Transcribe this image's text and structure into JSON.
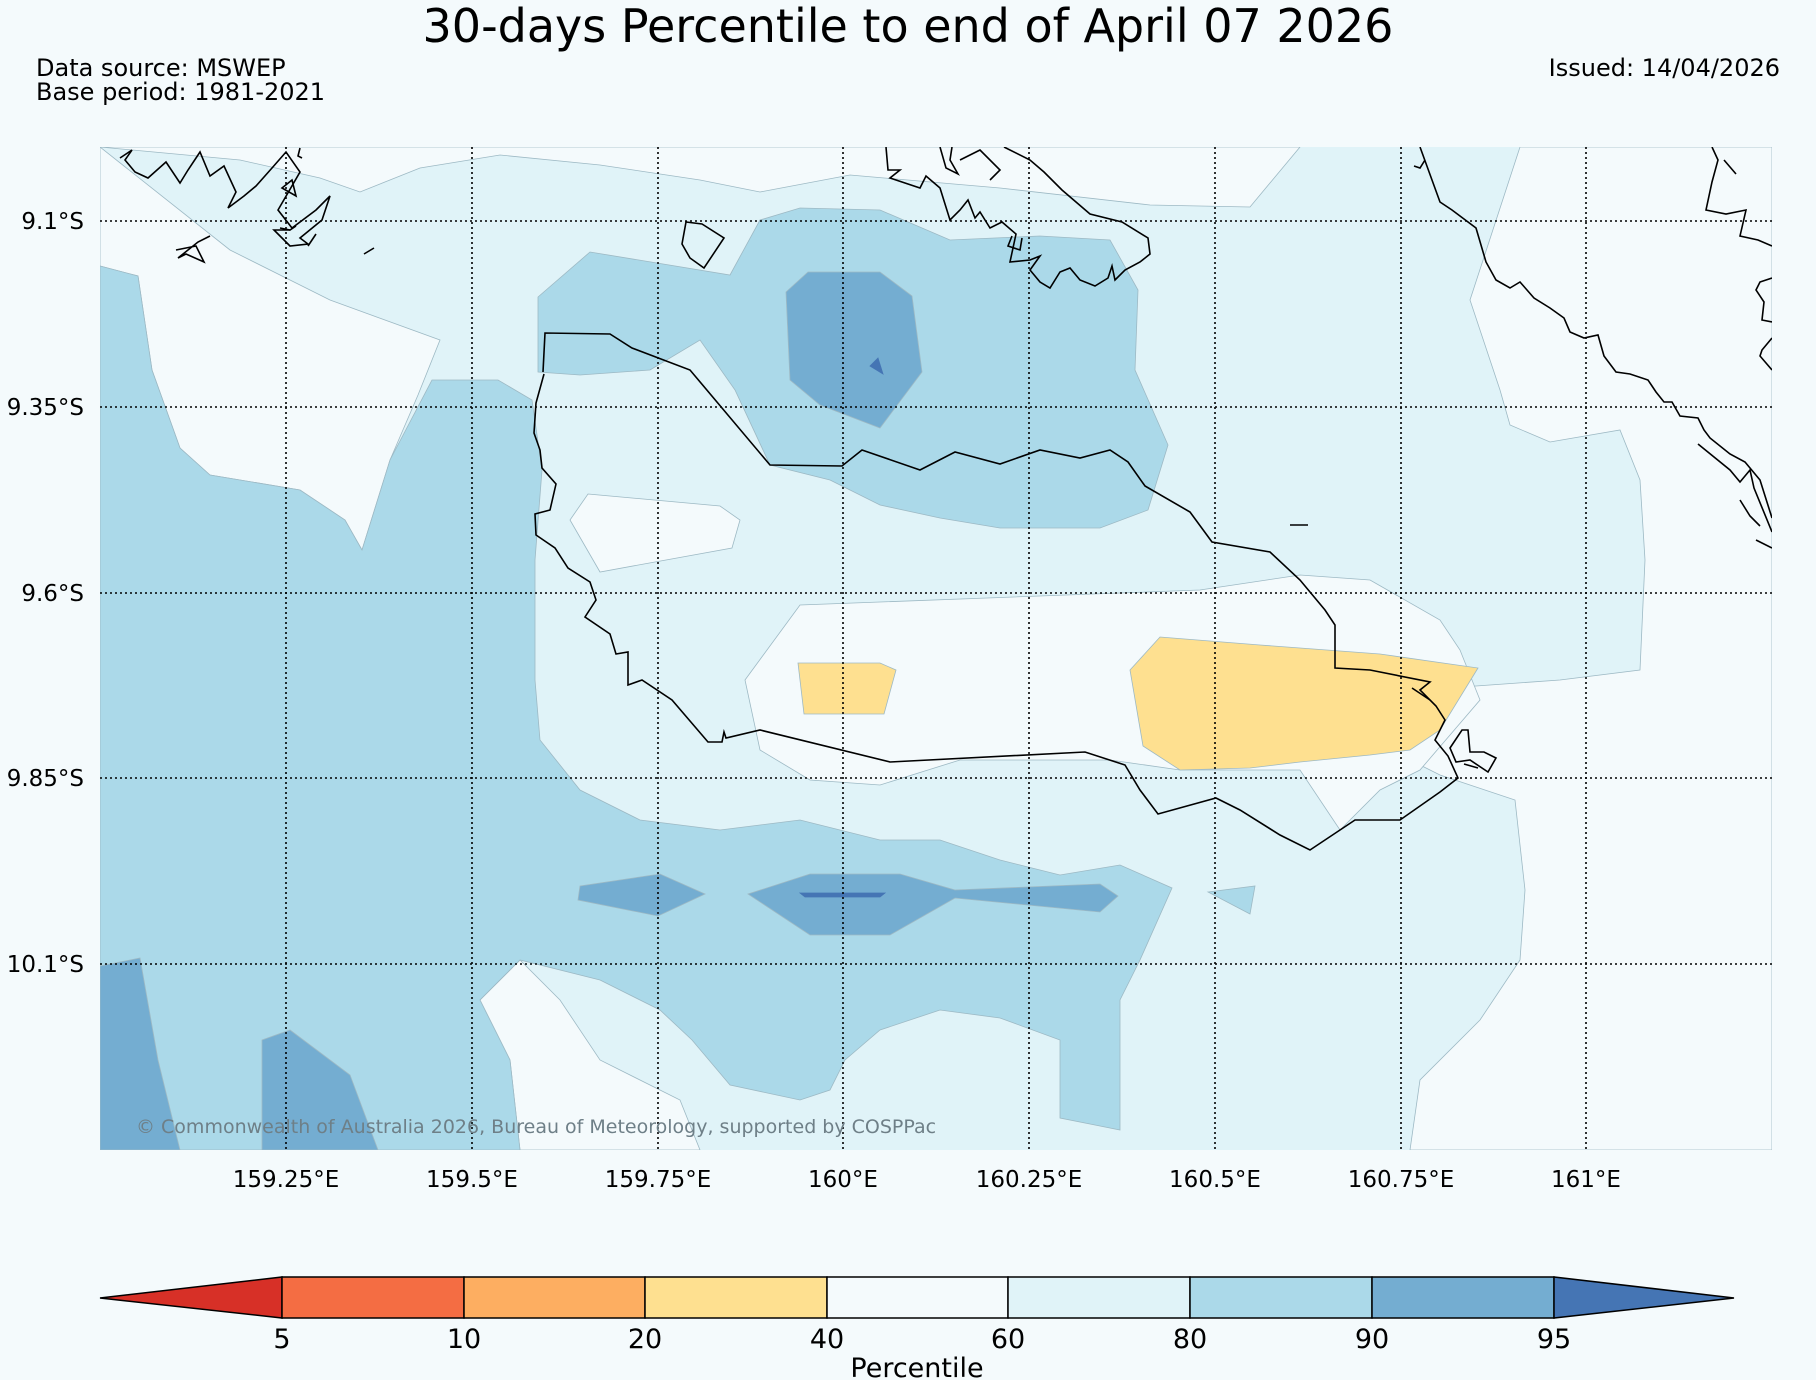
{
  "title": "30-days Percentile to end of April 07 2026",
  "data_source": "Data source: MSWEP",
  "base_period": "Base period: 1981-2021",
  "issued": "Issued: 14/04/2026",
  "copyright": "© Commonwealth of Australia 2026, Bureau of Meteorology, supported by COSPPac",
  "map": {
    "lon_labels": [
      "159.25°E",
      "159.5°E",
      "159.75°E",
      "160°E",
      "160.25°E",
      "160.5°E",
      "160.75°E",
      "161°E"
    ],
    "lat_labels": [
      "9.1°S",
      "9.35°S",
      "9.6°S",
      "9.85°S",
      "10.1°S"
    ]
  },
  "colorbar": {
    "label": "Percentile",
    "ticks": [
      "5",
      "10",
      "20",
      "40",
      "60",
      "80",
      "90",
      "95"
    ],
    "colors": {
      "below_5": "#d73027",
      "p5_10": "#f46d43",
      "p10_20": "#fdae61",
      "p20_40": "#fee090",
      "p40_60": "#f4fafc",
      "p60_80": "#e0f3f8",
      "p80_90": "#abd9e9",
      "p90_95": "#74add1",
      "above_95": "#4575b4"
    }
  }
}
